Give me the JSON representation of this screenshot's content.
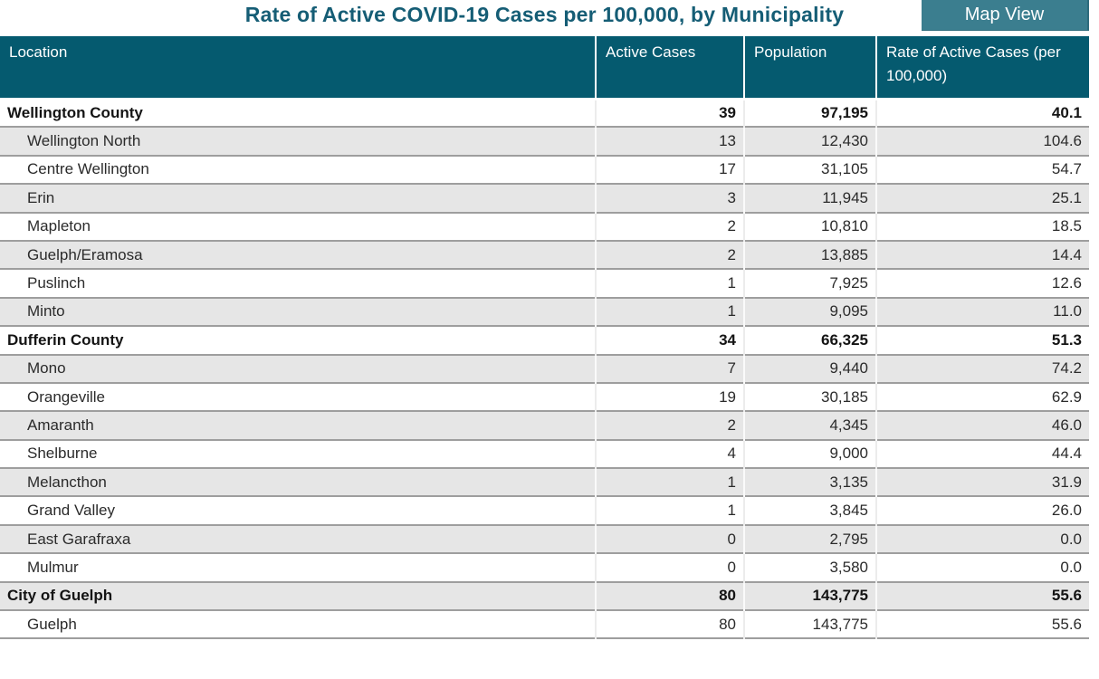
{
  "title": "Rate of Active COVID-19 Cases per 100,000, by Municipality",
  "map_view_button": {
    "label": "Map View"
  },
  "colors": {
    "header_bg": "#055a6f",
    "title_text": "#155d75",
    "button_bg": "#3b7e8f",
    "alt_row_bg": "#e6e6e6",
    "row_divider": "#9e9e9e"
  },
  "table": {
    "columns": [
      {
        "label": "Location"
      },
      {
        "label": "Active Cases"
      },
      {
        "label": "Population"
      },
      {
        "label": "Rate of Active Cases (per 100,000)"
      }
    ],
    "rows": [
      {
        "location": "Wellington County",
        "active_cases": "39",
        "population": "97,195",
        "rate": "40.1",
        "bold": true,
        "indent": false
      },
      {
        "location": "Wellington North",
        "active_cases": "13",
        "population": "12,430",
        "rate": "104.6",
        "bold": false,
        "indent": true
      },
      {
        "location": "Centre Wellington",
        "active_cases": "17",
        "population": "31,105",
        "rate": "54.7",
        "bold": false,
        "indent": true
      },
      {
        "location": "Erin",
        "active_cases": "3",
        "population": "11,945",
        "rate": "25.1",
        "bold": false,
        "indent": true
      },
      {
        "location": "Mapleton",
        "active_cases": "2",
        "population": "10,810",
        "rate": "18.5",
        "bold": false,
        "indent": true
      },
      {
        "location": "Guelph/Eramosa",
        "active_cases": "2",
        "population": "13,885",
        "rate": "14.4",
        "bold": false,
        "indent": true
      },
      {
        "location": "Puslinch",
        "active_cases": "1",
        "population": "7,925",
        "rate": "12.6",
        "bold": false,
        "indent": true
      },
      {
        "location": "Minto",
        "active_cases": "1",
        "population": "9,095",
        "rate": "11.0",
        "bold": false,
        "indent": true
      },
      {
        "location": "Dufferin County",
        "active_cases": "34",
        "population": "66,325",
        "rate": "51.3",
        "bold": true,
        "indent": false
      },
      {
        "location": "Mono",
        "active_cases": "7",
        "population": "9,440",
        "rate": "74.2",
        "bold": false,
        "indent": true
      },
      {
        "location": "Orangeville",
        "active_cases": "19",
        "population": "30,185",
        "rate": "62.9",
        "bold": false,
        "indent": true
      },
      {
        "location": "Amaranth",
        "active_cases": "2",
        "population": "4,345",
        "rate": "46.0",
        "bold": false,
        "indent": true
      },
      {
        "location": "Shelburne",
        "active_cases": "4",
        "population": "9,000",
        "rate": "44.4",
        "bold": false,
        "indent": true
      },
      {
        "location": "Melancthon",
        "active_cases": "1",
        "population": "3,135",
        "rate": "31.9",
        "bold": false,
        "indent": true
      },
      {
        "location": "Grand Valley",
        "active_cases": "1",
        "population": "3,845",
        "rate": "26.0",
        "bold": false,
        "indent": true
      },
      {
        "location": "East Garafraxa",
        "active_cases": "0",
        "population": "2,795",
        "rate": "0.0",
        "bold": false,
        "indent": true
      },
      {
        "location": "Mulmur",
        "active_cases": "0",
        "population": "3,580",
        "rate": "0.0",
        "bold": false,
        "indent": true
      },
      {
        "location": "City of Guelph",
        "active_cases": "80",
        "population": "143,775",
        "rate": "55.6",
        "bold": true,
        "indent": false
      },
      {
        "location": "Guelph",
        "active_cases": "80",
        "population": "143,775",
        "rate": "55.6",
        "bold": false,
        "indent": true
      }
    ]
  }
}
